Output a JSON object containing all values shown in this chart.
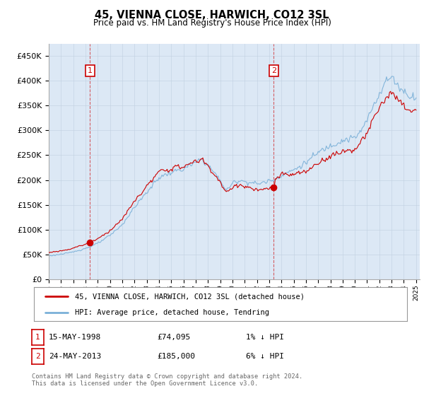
{
  "title": "45, VIENNA CLOSE, HARWICH, CO12 3SL",
  "subtitle": "Price paid vs. HM Land Registry's House Price Index (HPI)",
  "ylabel_ticks": [
    "£0",
    "£50K",
    "£100K",
    "£150K",
    "£200K",
    "£250K",
    "£300K",
    "£350K",
    "£400K",
    "£450K"
  ],
  "ylabel_values": [
    0,
    50000,
    100000,
    150000,
    200000,
    250000,
    300000,
    350000,
    400000,
    450000
  ],
  "ylim": [
    0,
    475000
  ],
  "hpi_color": "#7ab0d8",
  "price_color": "#cc0000",
  "plot_bg_color": "#dce8f5",
  "marker1_year": 1998.37,
  "marker1_value": 74095,
  "marker1_label": "1",
  "marker2_year": 2013.38,
  "marker2_value": 185000,
  "marker2_label": "2",
  "legend_line1": "45, VIENNA CLOSE, HARWICH, CO12 3SL (detached house)",
  "legend_line2": "HPI: Average price, detached house, Tendring",
  "table_row1": [
    "1",
    "15-MAY-1998",
    "£74,095",
    "1% ↓ HPI"
  ],
  "table_row2": [
    "2",
    "24-MAY-2013",
    "£185,000",
    "6% ↓ HPI"
  ],
  "footnote": "Contains HM Land Registry data © Crown copyright and database right 2024.\nThis data is licensed under the Open Government Licence v3.0.",
  "background_color": "#ffffff",
  "grid_color": "#c0d0e0"
}
